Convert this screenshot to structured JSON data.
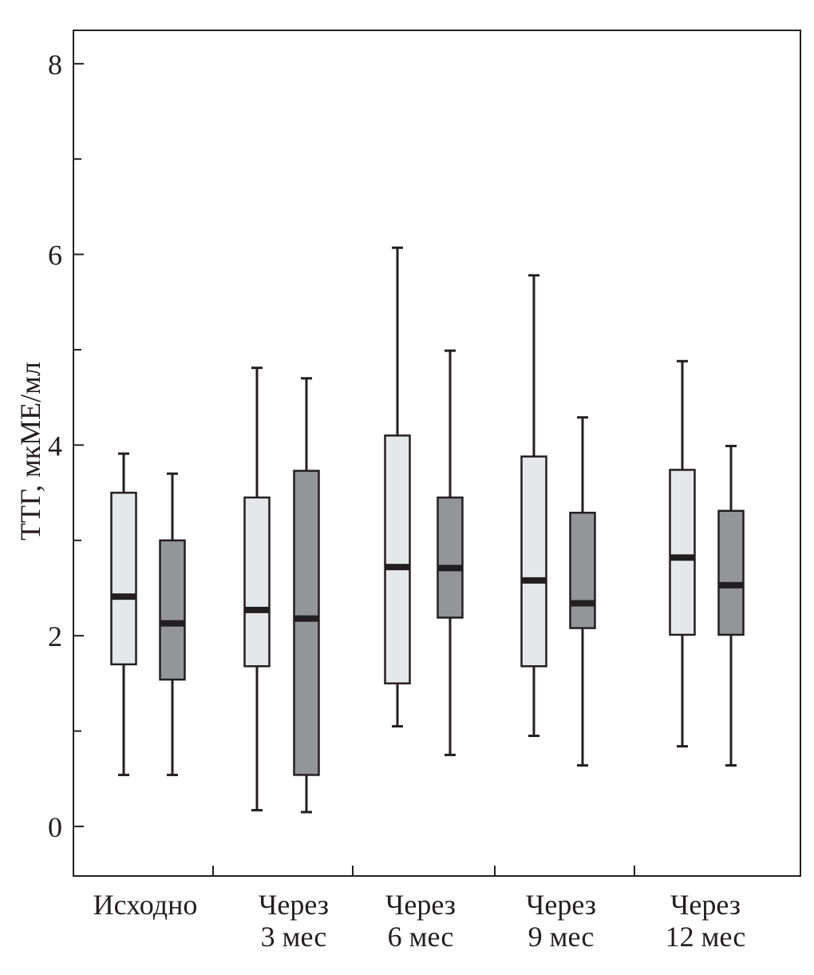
{
  "chart_data": {
    "type": "box",
    "title": "",
    "xlabel": "",
    "ylabel": "ТТГ, мкМЕ/мл",
    "ylim": [
      -0.52,
      8.35
    ],
    "yticks_major": [
      0,
      2,
      4,
      6,
      8
    ],
    "yticks_minor": [
      1,
      3,
      5,
      7
    ],
    "grid": false,
    "legend": null,
    "colors": {
      "light": "#e6e7e8",
      "dark": "#939598",
      "stroke": "#231f20"
    },
    "categories": [
      {
        "line1": "Исходно",
        "line2": ""
      },
      {
        "line1": "Через",
        "line2": "3 мес"
      },
      {
        "line1": "Через",
        "line2": "6 мес"
      },
      {
        "line1": "Через",
        "line2": "9 мес"
      },
      {
        "line1": "Через",
        "line2": "12 мес"
      }
    ],
    "series": [
      {
        "name": "light",
        "boxes": [
          {
            "min": 0.54,
            "q1": 1.7,
            "median": 2.41,
            "q3": 3.5,
            "max": 3.91
          },
          {
            "min": 0.17,
            "q1": 1.68,
            "median": 2.27,
            "q3": 3.45,
            "max": 4.81
          },
          {
            "min": 1.05,
            "q1": 1.5,
            "median": 2.72,
            "q3": 4.1,
            "max": 6.07
          },
          {
            "min": 0.95,
            "q1": 1.68,
            "median": 2.58,
            "q3": 3.88,
            "max": 5.78
          },
          {
            "min": 0.84,
            "q1": 2.01,
            "median": 2.82,
            "q3": 3.74,
            "max": 4.88
          }
        ]
      },
      {
        "name": "dark",
        "boxes": [
          {
            "min": 0.54,
            "q1": 1.54,
            "median": 2.13,
            "q3": 3.0,
            "max": 3.7
          },
          {
            "min": 0.15,
            "q1": 0.54,
            "median": 2.18,
            "q3": 3.73,
            "max": 4.7
          },
          {
            "min": 0.75,
            "q1": 2.19,
            "median": 2.71,
            "q3": 3.45,
            "max": 4.99
          },
          {
            "min": 0.64,
            "q1": 2.08,
            "median": 2.34,
            "q3": 3.29,
            "max": 4.29
          },
          {
            "min": 0.64,
            "q1": 2.01,
            "median": 2.53,
            "q3": 3.31,
            "max": 3.99
          }
        ]
      }
    ]
  }
}
